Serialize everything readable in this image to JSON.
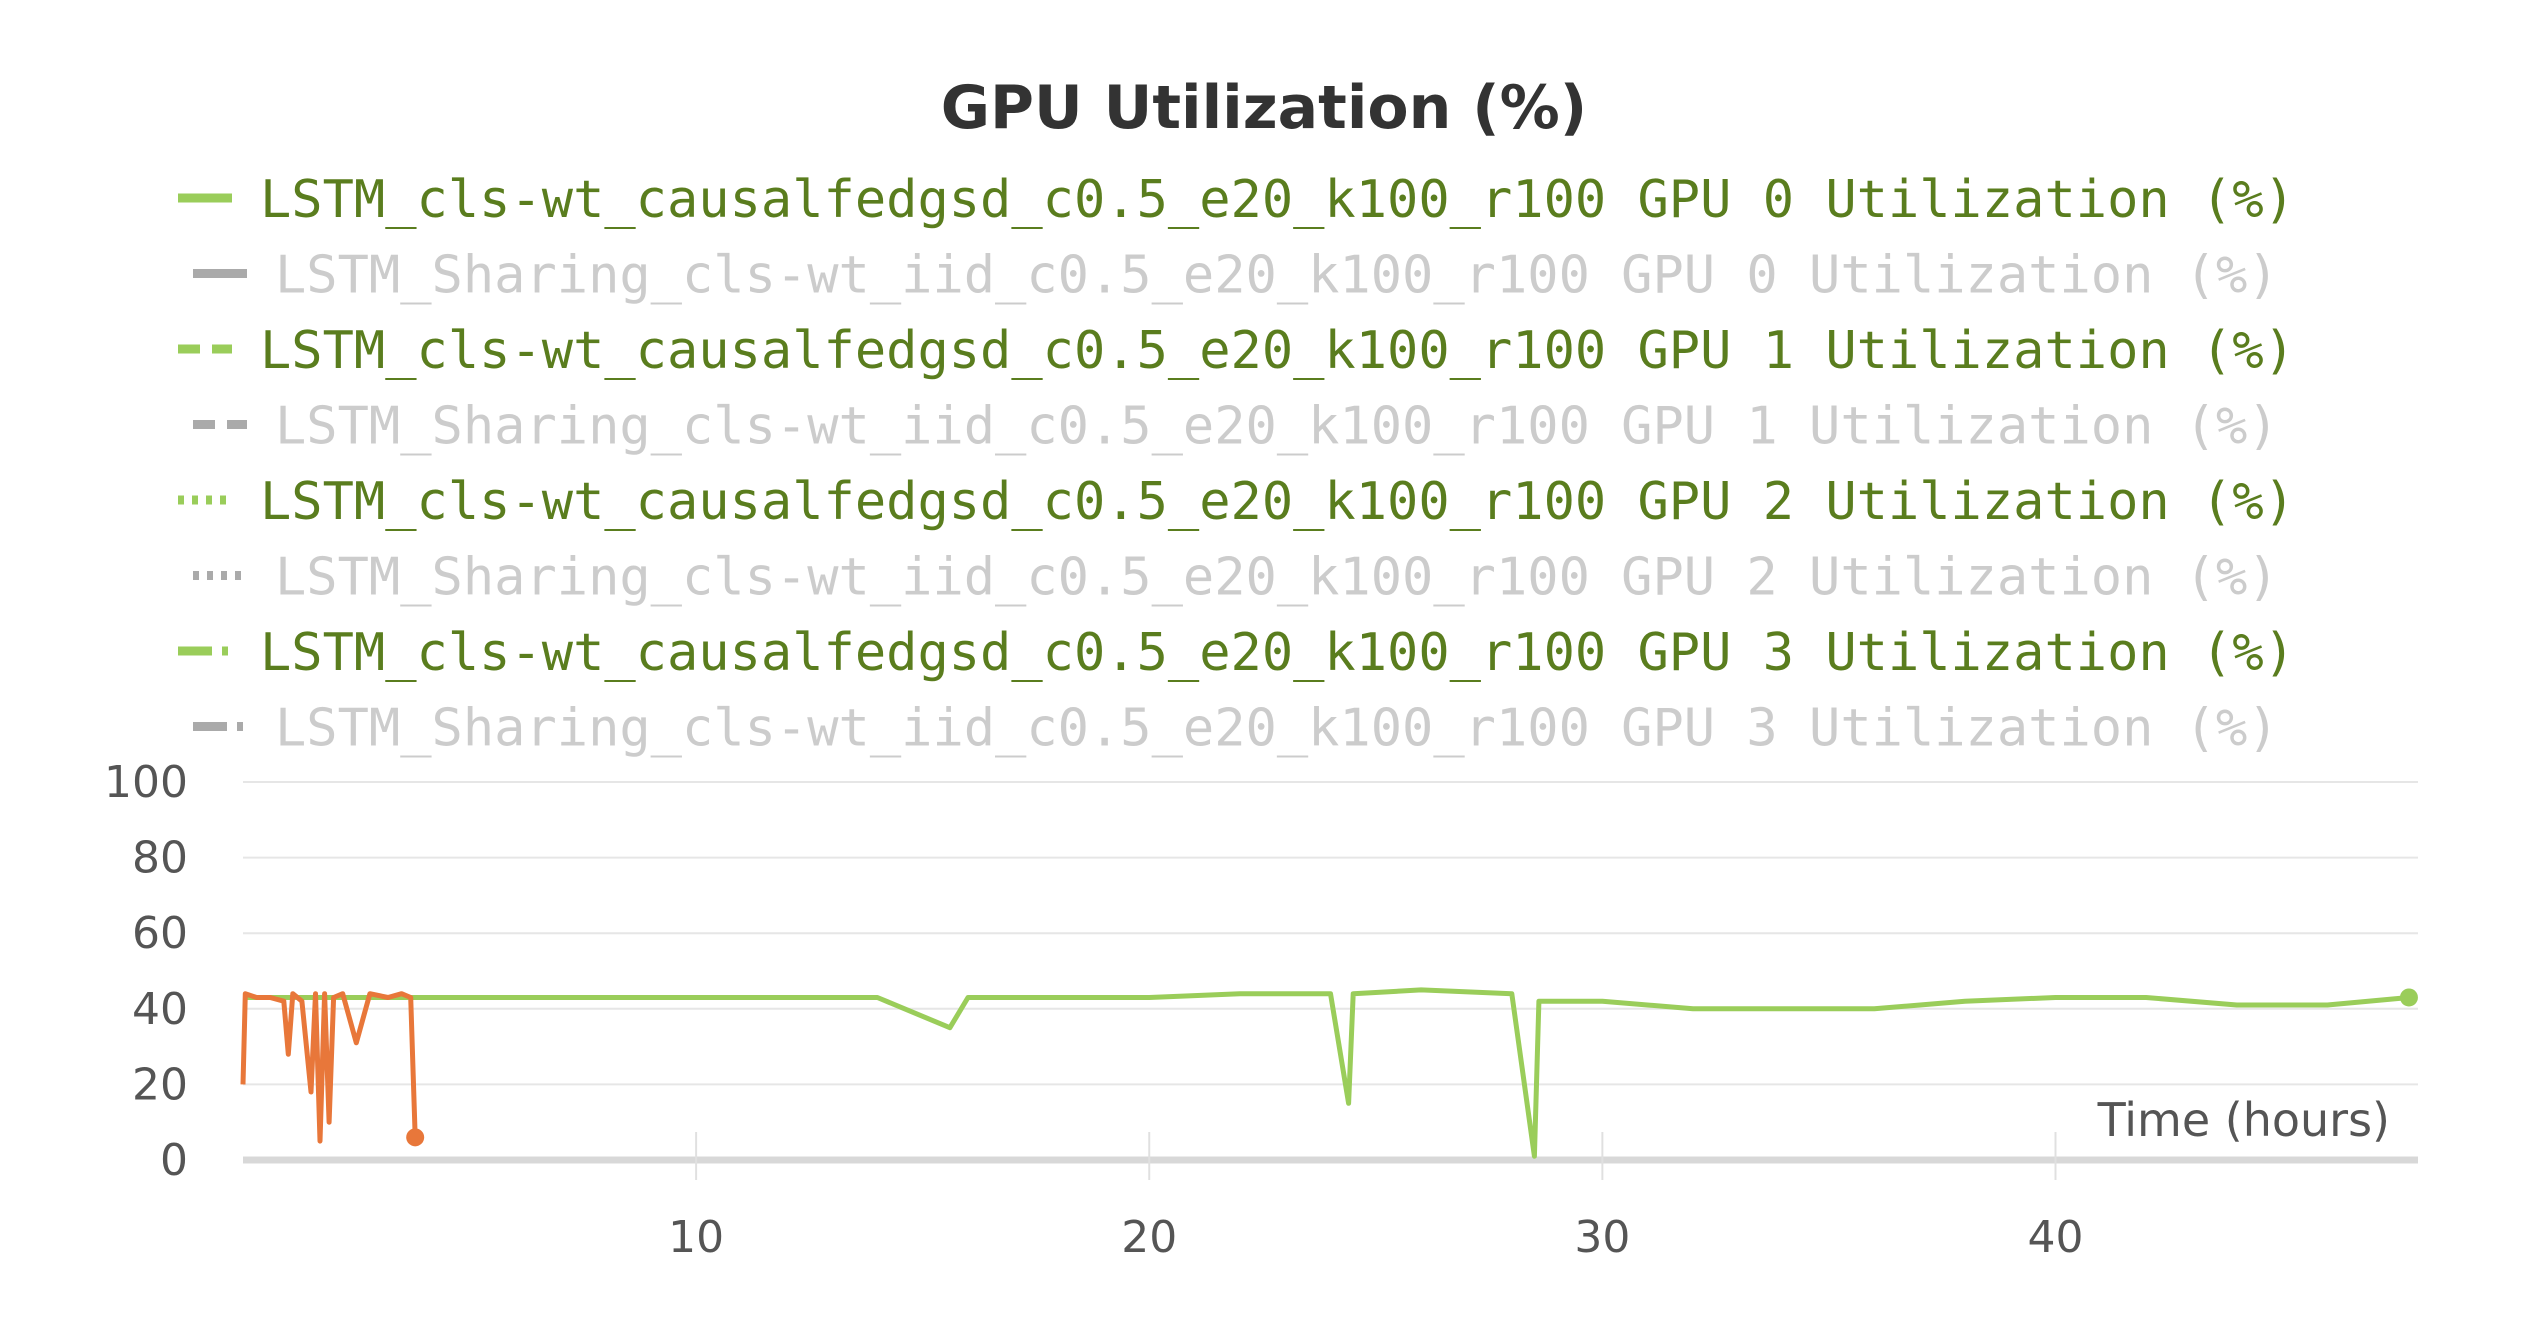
{
  "chart_data": {
    "type": "line",
    "title": "GPU Utilization (%)",
    "xlabel": "Time (hours)",
    "ylabel": "",
    "xlim": [
      0,
      48
    ],
    "ylim": [
      0,
      100
    ],
    "xticks": [
      10,
      20,
      30,
      40
    ],
    "yticks": [
      0,
      20,
      40,
      60,
      80,
      100
    ],
    "grid": true,
    "legend_position": "top",
    "colors": {
      "active": "#9ACD5A",
      "active_text": "#5A7D1E",
      "inactive": "#AAAAAA",
      "inactive_text": "#CCCCCC",
      "sharing": "#E8773A"
    },
    "legend": [
      {
        "label": "LSTM_cls-wt_causalfedgsd_c0.5_e20_k100_r100 GPU 0 Utilization (%)",
        "style": "solid",
        "state": "active"
      },
      {
        "label": "LSTM_Sharing_cls-wt_iid_c0.5_e20_k100_r100 GPU 0 Utilization (%)",
        "style": "solid",
        "state": "inactive"
      },
      {
        "label": "LSTM_cls-wt_causalfedgsd_c0.5_e20_k100_r100 GPU 1 Utilization (%)",
        "style": "dashed",
        "state": "active"
      },
      {
        "label": "LSTM_Sharing_cls-wt_iid_c0.5_e20_k100_r100 GPU 1 Utilization (%)",
        "style": "dashed",
        "state": "inactive"
      },
      {
        "label": "LSTM_cls-wt_causalfedgsd_c0.5_e20_k100_r100 GPU 2 Utilization (%)",
        "style": "dotted",
        "state": "active"
      },
      {
        "label": "LSTM_Sharing_cls-wt_iid_c0.5_e20_k100_r100 GPU 2 Utilization (%)",
        "style": "dotted",
        "state": "inactive"
      },
      {
        "label": "LSTM_cls-wt_causalfedgsd_c0.5_e20_k100_r100 GPU 3 Utilization (%)",
        "style": "dashdot",
        "state": "active"
      },
      {
        "label": "LSTM_Sharing_cls-wt_iid_c0.5_e20_k100_r100 GPU 3 Utilization (%)",
        "style": "dashdot",
        "state": "inactive"
      }
    ],
    "series": [
      {
        "color_key": "active",
        "x": [
          0,
          2,
          4,
          6,
          8,
          10,
          12,
          14,
          15.6,
          16,
          18,
          20,
          22,
          24,
          24.4,
          24.5,
          26,
          28,
          28.5,
          28.6,
          30,
          32,
          34,
          36,
          38,
          40,
          42,
          44,
          46,
          47.8
        ],
        "y": [
          43,
          43,
          43,
          43,
          43,
          43,
          43,
          43,
          35,
          43,
          43,
          43,
          44,
          44,
          15,
          44,
          45,
          44,
          1,
          42,
          42,
          40,
          40,
          40,
          42,
          43,
          43,
          41,
          41,
          43
        ]
      },
      {
        "color_key": "sharing",
        "x": [
          0,
          0.05,
          0.3,
          0.6,
          0.9,
          1.0,
          1.1,
          1.3,
          1.5,
          1.6,
          1.7,
          1.8,
          1.9,
          2.0,
          2.2,
          2.5,
          2.8,
          3.2,
          3.5,
          3.7,
          3.8
        ],
        "y": [
          20,
          44,
          43,
          43,
          42,
          28,
          44,
          42,
          18,
          44,
          5,
          44,
          10,
          43,
          44,
          31,
          44,
          43,
          44,
          43,
          6
        ]
      }
    ]
  }
}
